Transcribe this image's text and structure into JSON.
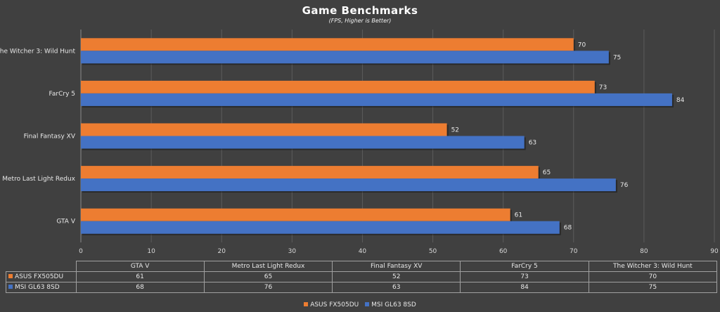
{
  "chart_data": {
    "type": "bar",
    "orientation": "horizontal",
    "title": "Game Benchmarks",
    "subtitle": "(FPS, Higher is Better)",
    "categories": [
      "GTA V",
      "Metro Last Light Redux",
      "Final Fantasy XV",
      "FarCry 5",
      "The Witcher 3: Wild Hunt"
    ],
    "series": [
      {
        "name": "ASUS FX505DU",
        "color": "#ed7d31",
        "values": [
          61,
          65,
          52,
          73,
          70
        ]
      },
      {
        "name": "MSI GL63 8SD",
        "color": "#4472c4",
        "values": [
          68,
          76,
          63,
          84,
          75
        ]
      }
    ],
    "xlim": [
      0,
      90
    ],
    "xticks": [
      0,
      10,
      20,
      30,
      40,
      50,
      60,
      70,
      80,
      90
    ],
    "grid": true,
    "data_labels": true,
    "data_table": true,
    "legend_position": "bottom"
  }
}
